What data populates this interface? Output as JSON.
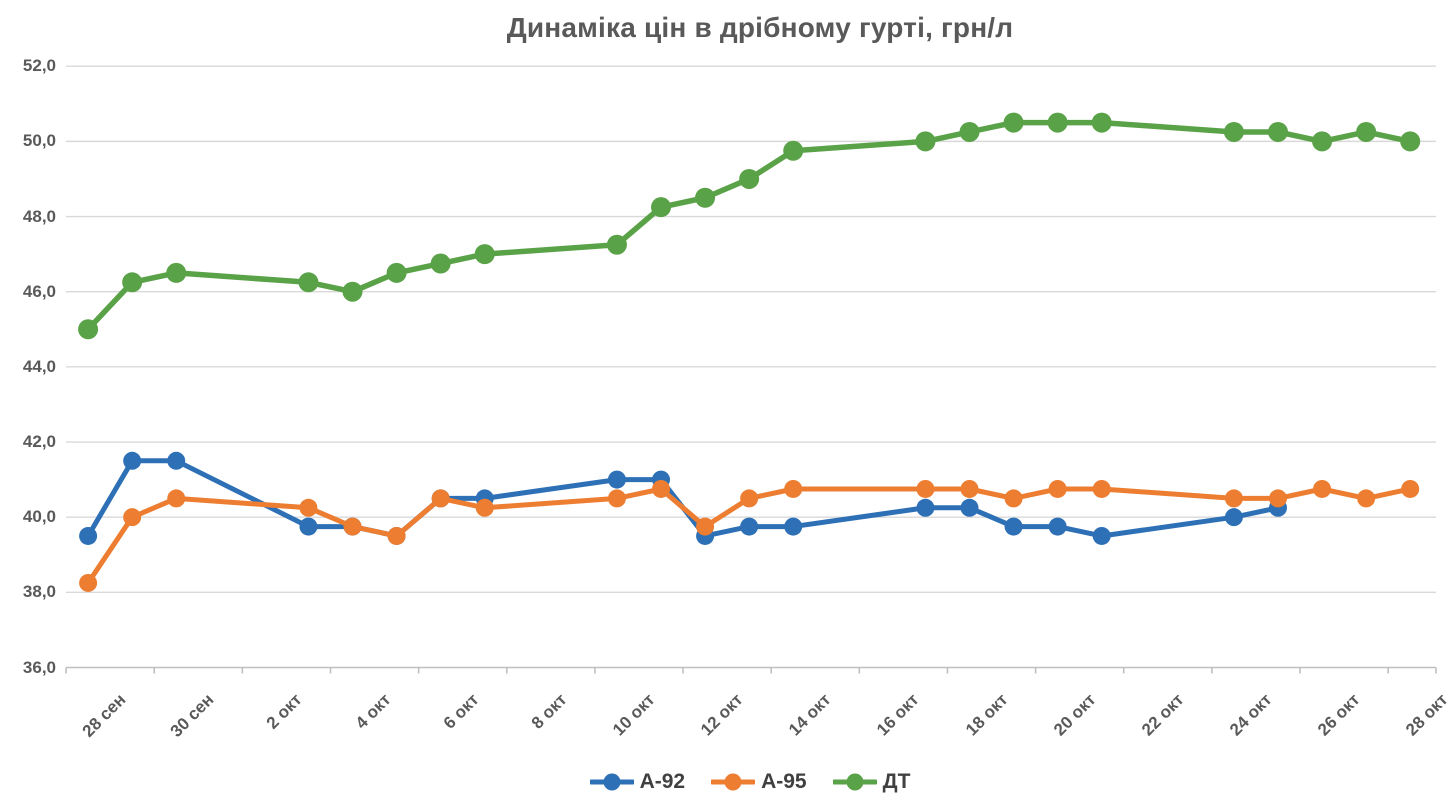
{
  "chart_data": {
    "type": "line",
    "title": "Динаміка цін в дрібному гурті, грн/л",
    "legend_position": "bottom",
    "grid": "horizontal",
    "ylim": [
      36,
      52
    ],
    "ytick_step": 2,
    "y_tick_labels": [
      "36,0",
      "38,0",
      "40,0",
      "42,0",
      "44,0",
      "46,0",
      "48,0",
      "50,0",
      "52,0"
    ],
    "x_tick_labels": [
      "28 сен",
      "30 сен",
      "2 окт",
      "4 окт",
      "6 окт",
      "8 окт",
      "10 окт",
      "12 окт",
      "14 окт",
      "16 окт",
      "18 окт",
      "20 окт",
      "22 окт",
      "24 окт",
      "26 окт",
      "28 окт"
    ],
    "categories": [
      "28 сен",
      "29 сен",
      "30 сен",
      "3 окт",
      "4 окт",
      "5 окт",
      "6 окт",
      "7 окт",
      "10 окт",
      "11 окт",
      "12 окт",
      "13 окт",
      "14 окт",
      "17 окт",
      "18 окт",
      "19 окт",
      "20 окт",
      "21 окт",
      "24 окт",
      "25 окт",
      "26 окт",
      "27 окт",
      "28 окт"
    ],
    "day_offsets": [
      0,
      1,
      2,
      5,
      6,
      7,
      8,
      9,
      12,
      13,
      14,
      15,
      16,
      19,
      20,
      21,
      22,
      23,
      26,
      27,
      28,
      29,
      30
    ],
    "series": [
      {
        "name": "А-92",
        "color": "#2E70B6",
        "values": [
          39.5,
          41.5,
          41.5,
          39.75,
          39.75,
          39.5,
          40.5,
          40.5,
          41.0,
          41.0,
          39.5,
          39.75,
          39.75,
          40.25,
          40.25,
          39.75,
          39.75,
          39.5,
          40.0,
          40.25,
          null,
          null,
          null
        ]
      },
      {
        "name": "А-95",
        "color": "#ED7D31",
        "values": [
          38.25,
          40.0,
          40.5,
          40.25,
          39.75,
          39.5,
          40.5,
          40.25,
          40.5,
          40.75,
          39.75,
          40.5,
          40.75,
          40.75,
          40.75,
          40.5,
          40.75,
          40.75,
          40.5,
          40.5,
          40.75,
          40.5,
          40.75
        ]
      },
      {
        "name": "ДТ",
        "color": "#5AA248",
        "values": [
          45.0,
          46.25,
          46.5,
          46.25,
          46.0,
          46.5,
          46.75,
          47.0,
          47.25,
          48.25,
          48.5,
          49.0,
          49.75,
          50.0,
          50.25,
          50.5,
          50.5,
          50.5,
          50.25,
          50.25,
          50.0,
          50.25,
          50.0
        ]
      }
    ],
    "grid_color": "#D9D9D9",
    "axis_color": "#BFBFBF",
    "text_color": "#595959"
  }
}
